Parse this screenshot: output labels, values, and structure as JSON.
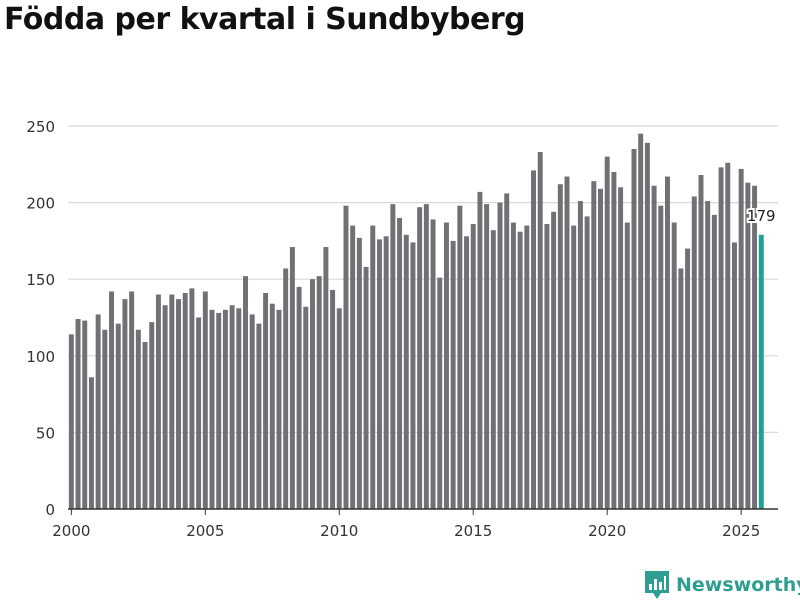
{
  "page": {
    "title": "Födda per kvartal i Sundbyberg"
  },
  "brand": {
    "name": "Newsworthy",
    "color": "#2e9e92"
  },
  "colors": {
    "bar": "#717075",
    "highlight": "#1ea096",
    "grid": "#d9d9d9",
    "axis": "#333333",
    "label": "#333333"
  },
  "chart_data": {
    "type": "bar",
    "title": "Födda per kvartal i Sundbyberg",
    "xlabel": "",
    "ylabel": "",
    "ylim": [
      0,
      250
    ],
    "yticks": [
      0,
      50,
      100,
      150,
      200,
      250
    ],
    "xlim": [
      1999.875,
      2026.375
    ],
    "xticks": [
      2000,
      2005,
      2010,
      2015,
      2020,
      2025
    ],
    "grid": true,
    "series": [
      {
        "name": "Födda",
        "start": {
          "year": 2000,
          "quarter": 1
        },
        "values": [
          114,
          124,
          123,
          86,
          127,
          117,
          142,
          121,
          137,
          142,
          117,
          109,
          122,
          140,
          133,
          140,
          137,
          141,
          144,
          125,
          142,
          130,
          128,
          130,
          133,
          131,
          152,
          127,
          121,
          141,
          134,
          130,
          157,
          171,
          145,
          132,
          150,
          152,
          171,
          143,
          131,
          198,
          185,
          177,
          158,
          185,
          176,
          178,
          199,
          190,
          179,
          174,
          197,
          199,
          189,
          151,
          187,
          175,
          198,
          178,
          186,
          207,
          199,
          182,
          200,
          206,
          187,
          181,
          185,
          221,
          233,
          186,
          194,
          212,
          217,
          185,
          201,
          191,
          214,
          209,
          230,
          220,
          210,
          187,
          235,
          245,
          239,
          211,
          198,
          217,
          187,
          157,
          170,
          204,
          218,
          201,
          192,
          223,
          226,
          174,
          222,
          213,
          211,
          179
        ]
      }
    ],
    "highlight": {
      "year": 2025,
      "quarter": 4,
      "value": 179,
      "label": "179"
    }
  }
}
